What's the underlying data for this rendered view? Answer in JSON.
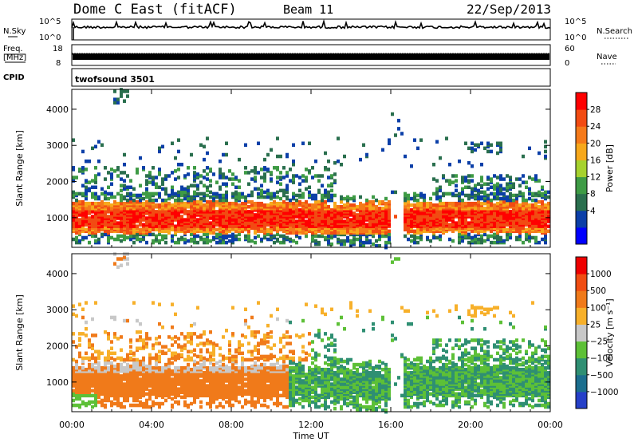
{
  "header": {
    "title": "Dome C East (fitACF)",
    "beam": "Beam 11",
    "date": "22/Sep/2013"
  },
  "side_labels": {
    "nsky": "N.Sky",
    "freq": "Freq.",
    "freq_unit": "[MHz]",
    "cpid": "CPID",
    "nsearch": "N.Search",
    "nave": "Nave"
  },
  "noise_panel": {
    "y_ticks": [
      "10^5",
      "10^0"
    ],
    "right_ticks": [
      "10^5",
      "10^0"
    ]
  },
  "freq_panel": {
    "y_ticks": [
      "18",
      "8"
    ],
    "right_ticks": [
      "60",
      "0"
    ]
  },
  "cpid_label": "twofsound 3501",
  "chart_data": [
    {
      "type": "heatmap",
      "name": "power",
      "ylabel": "Slant Range [km]",
      "ylim": [
        180,
        4550
      ],
      "y_ticks": [
        1000,
        2000,
        3000,
        4000
      ],
      "xlim": [
        0,
        24
      ],
      "colorbar": {
        "label": "Power [dB]",
        "ticks": [
          "28",
          "24",
          "20",
          "16",
          "12",
          "8",
          "4"
        ],
        "colors": [
          "#0000ff",
          "#0b3fa8",
          "#2a6f4e",
          "#3e9b45",
          "#a6d22e",
          "#f7a81b",
          "#f57a1a",
          "#f24b12",
          "#ff0000"
        ]
      }
    },
    {
      "type": "heatmap",
      "name": "velocity",
      "ylabel": "Slant Range [km]",
      "ylim": [
        180,
        4550
      ],
      "y_ticks": [
        1000,
        2000,
        3000,
        4000
      ],
      "xlim": [
        0,
        24
      ],
      "xlabel": "Time UT",
      "x_ticks": [
        "00:00",
        "04:00",
        "08:00",
        "12:00",
        "16:00",
        "20:00",
        "00:00"
      ],
      "colorbar": {
        "label": "Velocity [m s⁻¹]",
        "ticks": [
          "1000",
          "500",
          "100",
          "25",
          "−25",
          "−100",
          "−500",
          "−1000"
        ],
        "colors": [
          "#2640c8",
          "#1b6e8e",
          "#2f8f73",
          "#5dc037",
          "#c8c8c8",
          "#f7b02a",
          "#f07a1a",
          "#f04d12",
          "#ee0000"
        ]
      }
    }
  ]
}
